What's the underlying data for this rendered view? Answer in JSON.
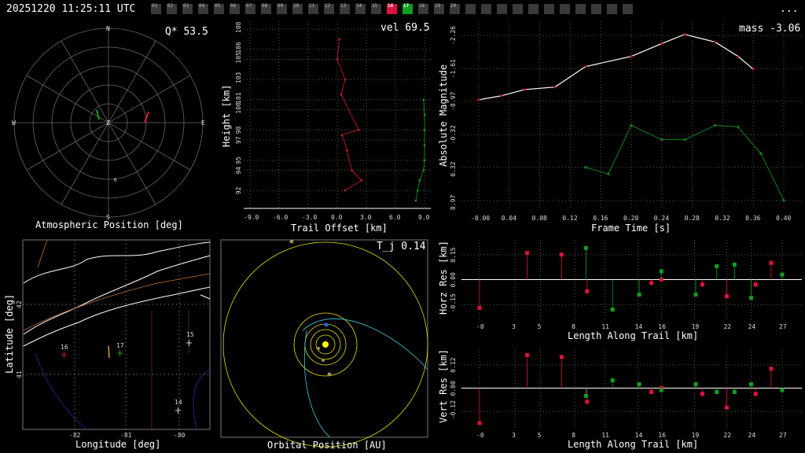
{
  "header": {
    "timestamp": "20251220 11:25:11 UTC",
    "menu": "..."
  },
  "cameras": {
    "labels": [
      "01",
      "02",
      "03",
      "04",
      "05",
      "06",
      "07",
      "08",
      "09",
      "10",
      "11",
      "12",
      "13",
      "14",
      "15",
      "16",
      "17",
      "18",
      "19",
      "20"
    ],
    "empty_count": 11,
    "red": "16",
    "green": "17"
  },
  "colors": {
    "red": "#e0103a",
    "green": "#10a020",
    "yellow": "#e8e000",
    "cyan": "#40c8e0"
  },
  "sky": {
    "title": "Atmospheric Position [deg]",
    "metric": "Q* 53.5",
    "dirs": {
      "n": "N",
      "s": "S",
      "e": "E",
      "w": "W",
      "z": "Z",
      "r": "R"
    }
  },
  "height_plot": {
    "title": "Trail Offset [km]",
    "ylabel": "Height [km]",
    "metric": "vel 69.5",
    "xticks": [
      "-9.0",
      "-6.0",
      "-3.0",
      "0.0",
      "3.0",
      "6.0",
      "9.0"
    ],
    "yticks": [
      "92",
      "94",
      "95",
      "97",
      "98",
      "100",
      "101",
      "103",
      "105",
      "106",
      "108"
    ]
  },
  "mag_plot": {
    "xlabel": "Frame Time [s]",
    "ylabel": "Absolute Magnitude",
    "metric": "mass -3.06",
    "xticks": [
      "-0.00",
      "0.04",
      "0.08",
      "0.12",
      "0.16",
      "0.20",
      "0.24",
      "0.28",
      "0.32",
      "0.36",
      "0.40"
    ],
    "yticks": [
      "-2.26",
      "-1.61",
      "-0.97",
      "-0.32",
      "0.32",
      "0.97"
    ]
  },
  "map": {
    "xlabel": "Longitude [deg]",
    "ylabel": "Latitude [deg]",
    "xticks": [
      "-82",
      "-81",
      "-80"
    ],
    "yticks": [
      "42",
      "41"
    ],
    "stations": [
      "16",
      "17",
      "15",
      "14"
    ]
  },
  "orbit": {
    "title": "Orbital Position [AU]",
    "metric": "T_j 0.14"
  },
  "horz_res": {
    "xlabel": "Length Along Trail [km]",
    "ylabel": "Horz Res [km]",
    "xticks": [
      "-0",
      "3",
      "5",
      "8",
      "11",
      "14",
      "16",
      "19",
      "22",
      "24",
      "27"
    ],
    "yticks": [
      "0.15",
      "0.00",
      "-0.15"
    ]
  },
  "vert_res": {
    "xlabel": "Length Along Trail [km]",
    "ylabel": "Vert Res [km]",
    "xticks": [
      "-0",
      "3",
      "5",
      "8",
      "11",
      "14",
      "16",
      "19",
      "22",
      "24",
      "27"
    ],
    "yticks": [
      "0.12",
      "0.00",
      "-0.12"
    ]
  },
  "chart_data": [
    {
      "type": "line",
      "xlabel": "Frame Time [s]",
      "ylabel": "Absolute Magnitude",
      "series": [
        {
          "color": "#e0103a",
          "x": [
            0.0,
            0.03,
            0.06,
            0.1,
            0.14,
            0.2,
            0.24,
            0.27,
            0.31,
            0.34,
            0.36
          ],
          "y": [
            -1.0,
            -1.08,
            -1.2,
            -1.25,
            -1.65,
            -1.85,
            -2.1,
            -2.28,
            -2.13,
            -1.85,
            -1.6
          ]
        },
        {
          "color": "#10a020",
          "x": [
            0.14,
            0.17,
            0.2,
            0.24,
            0.27,
            0.31,
            0.34,
            0.37,
            0.4
          ],
          "y": [
            0.32,
            0.45,
            -0.5,
            -0.22,
            -0.22,
            -0.5,
            -0.47,
            0.05,
            0.97
          ]
        }
      ]
    },
    {
      "type": "scatter",
      "xlabel": "Trail Offset [km]",
      "ylabel": "Height [km]",
      "series": [
        {
          "color": "#e0103a",
          "x": [
            0.2,
            0.0,
            0.8,
            0.4,
            2.2,
            0.5,
            1.0,
            1.5,
            2.5,
            0.8
          ],
          "y": [
            107,
            105,
            103,
            101.5,
            98,
            97.5,
            96,
            94,
            93,
            92
          ]
        },
        {
          "color": "#10a020",
          "x": [
            8.9,
            9.0,
            9.0,
            9.0,
            9.0,
            8.9,
            8.5,
            8.3,
            8.1
          ],
          "y": [
            101,
            99.5,
            98,
            96.5,
            95,
            94,
            93,
            92,
            91
          ]
        }
      ]
    },
    {
      "type": "scatter",
      "xlabel": "Length Along Trail [km]",
      "ylabel": "Horz Res [km]",
      "series": [
        {
          "color": "#e0103a",
          "x": [
            0,
            4.3,
            7.4,
            9.7,
            15.5,
            16.4,
            20.1,
            22.3,
            24.9,
            26.3
          ],
          "y": [
            -0.17,
            0.16,
            0.15,
            -0.07,
            -0.02,
            0.0,
            -0.03,
            -0.1,
            -0.03,
            0.1
          ]
        },
        {
          "color": "#10a020",
          "x": [
            9.6,
            12.0,
            14.4,
            16.4,
            19.5,
            21.4,
            23.0,
            24.5,
            27.3
          ],
          "y": [
            0.19,
            -0.18,
            -0.09,
            0.05,
            -0.09,
            0.08,
            0.09,
            -0.11,
            0.03
          ]
        }
      ]
    },
    {
      "type": "scatter",
      "xlabel": "Length Along Trail [km]",
      "ylabel": "Vert Res [km]",
      "series": [
        {
          "color": "#e0103a",
          "x": [
            0,
            4.3,
            7.4,
            9.7,
            15.5,
            16.4,
            20.1,
            22.3,
            24.9,
            26.3
          ],
          "y": [
            -0.18,
            0.17,
            0.16,
            -0.07,
            -0.02,
            0.0,
            -0.03,
            -0.1,
            -0.03,
            0.1
          ]
        },
        {
          "color": "#10a020",
          "x": [
            9.6,
            12.0,
            14.4,
            16.4,
            19.5,
            21.4,
            23.0,
            24.5,
            27.3
          ],
          "y": [
            -0.04,
            0.04,
            0.02,
            -0.01,
            0.02,
            -0.02,
            -0.02,
            0.02,
            -0.01
          ]
        }
      ]
    }
  ]
}
